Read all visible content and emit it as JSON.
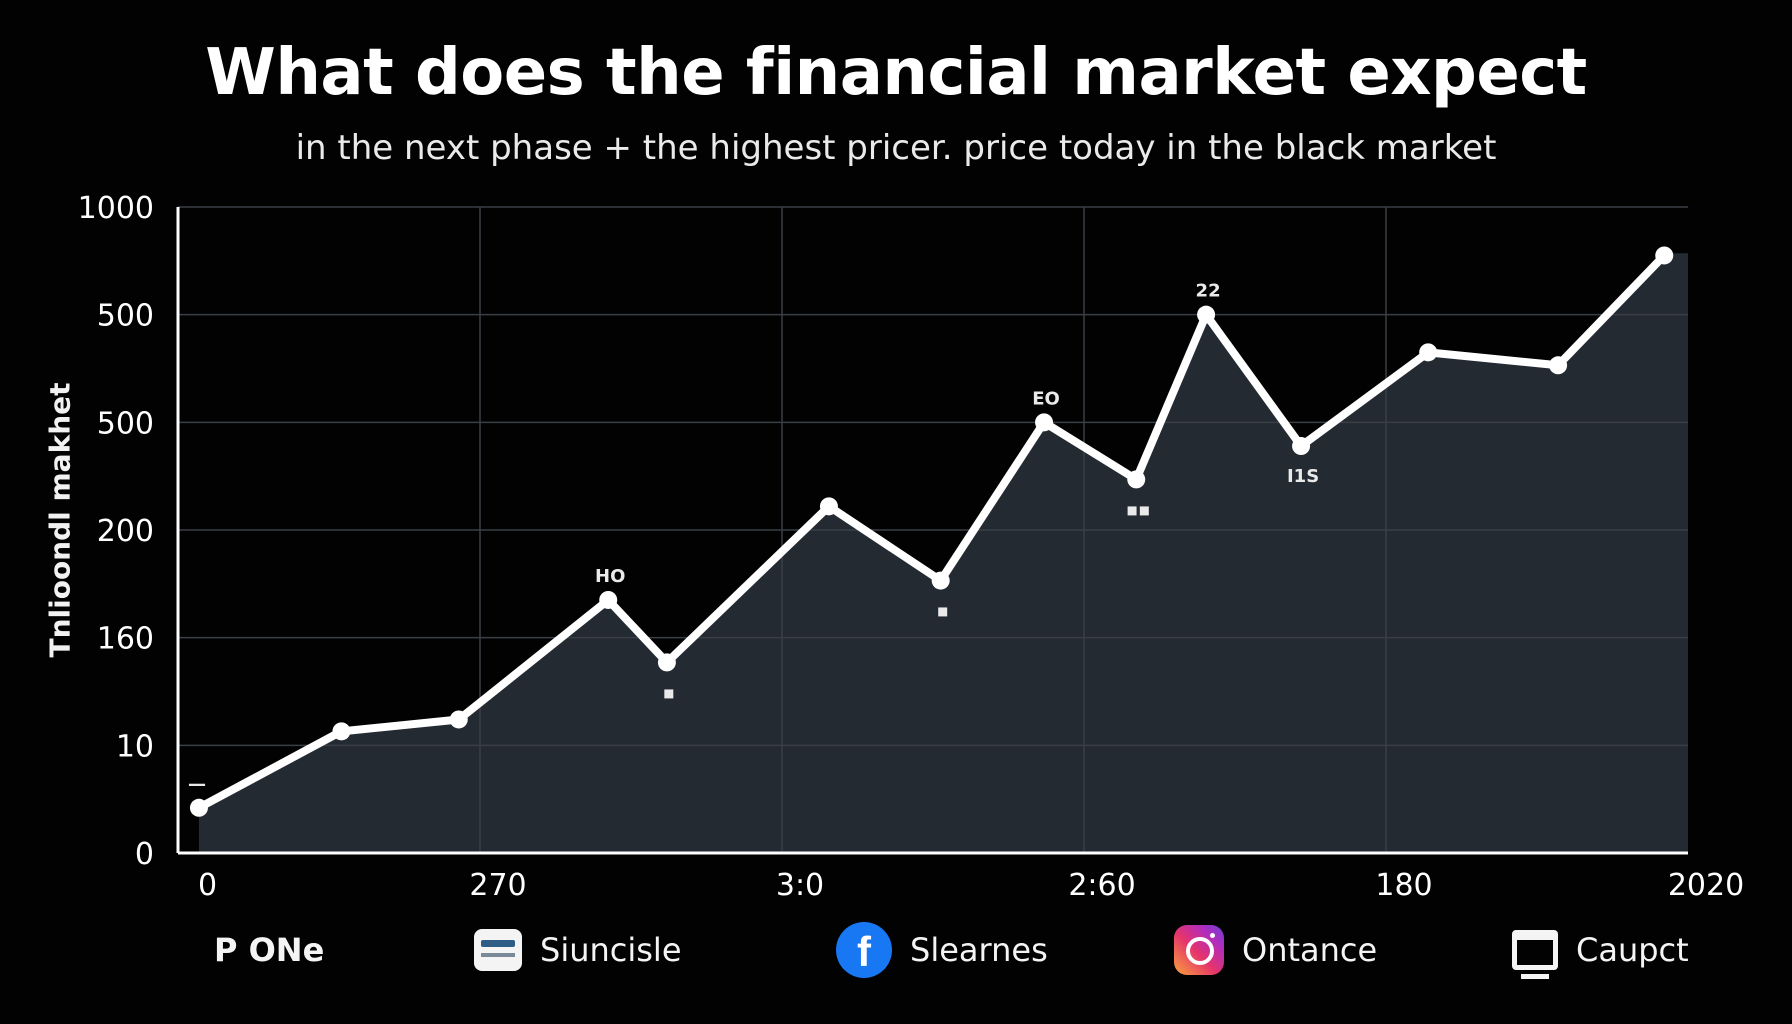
{
  "chart_data": {
    "type": "line",
    "title": "What does the financial market expect",
    "subtitle": "in the next phase + the highest pricer. price today in the black market",
    "ylabel": "Tnlioondl makhet",
    "ytick_labels": [
      "0",
      "10",
      "160",
      "200",
      "500",
      "500",
      "1000"
    ],
    "xtick_labels": [
      "0",
      "270",
      "3:0",
      "2:60",
      "180",
      "2020"
    ],
    "ylim": [
      0,
      6
    ],
    "grid": true,
    "series": [
      {
        "x": [
          0.05,
          1.07,
          1.91,
          2.98,
          3.4,
          4.56,
          5.36,
          6.1,
          6.76,
          7.26,
          7.94,
          8.85,
          9.78,
          10.54
        ],
        "values": [
          0.42,
          1.13,
          1.24,
          2.35,
          1.77,
          3.22,
          2.53,
          4.0,
          3.47,
          5.0,
          3.78,
          4.65,
          4.53,
          5.55
        ]
      }
    ],
    "xlim": [
      -0.1,
      10.71
    ],
    "annotations": [
      {
        "point": 0,
        "text": "—"
      },
      {
        "point": 3,
        "text": "HO"
      },
      {
        "point": 4,
        "text": "▪"
      },
      {
        "point": 6,
        "text": "▪"
      },
      {
        "point": 7,
        "text": "EO"
      },
      {
        "point": 8,
        "text": "▪▪"
      },
      {
        "point": 9,
        "text": "22"
      },
      {
        "point": 10,
        "text": "I1S"
      }
    ],
    "colors": {
      "line": "#ffffff",
      "area": "#252c35",
      "grid": "#3a3f46",
      "axis": "#ffffff"
    }
  },
  "legend": [
    {
      "label": "P ONe",
      "icon": "none"
    },
    {
      "label": "Siuncisle",
      "icon": "card-icon"
    },
    {
      "label": "Slearnes",
      "icon": "facebook-icon"
    },
    {
      "label": "Ontance",
      "icon": "instagram-icon"
    },
    {
      "label": "Caupct",
      "icon": "monitor-icon"
    }
  ]
}
